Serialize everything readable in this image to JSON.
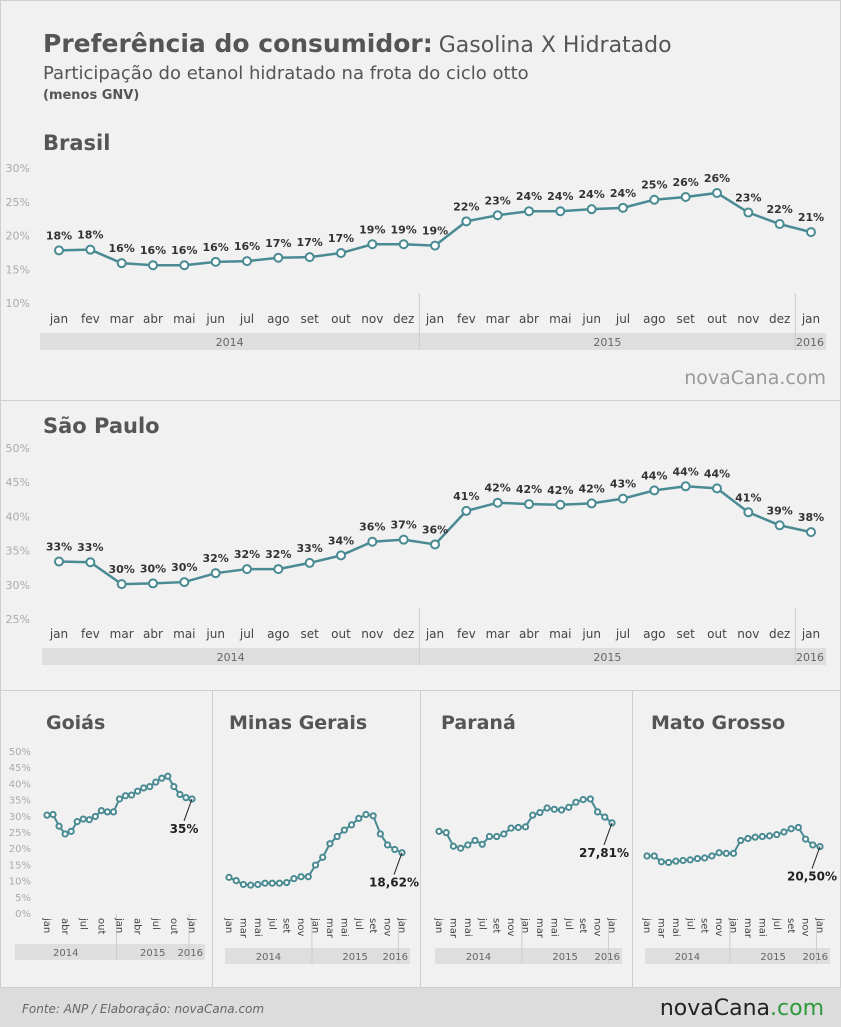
{
  "header": {
    "title": "Preferência do consumidor:",
    "title_2": "Gasolina X Hidratado",
    "subtitle": "Participação do etanol hidratado na frota do ciclo otto",
    "note": "(menos GNV)"
  },
  "watermark": "novaCana.com",
  "chart_data": [
    {
      "type": "line",
      "title": "Brasil",
      "color": "#4a8a93",
      "categories": [
        "jan",
        "fev",
        "mar",
        "abr",
        "mai",
        "jun",
        "jul",
        "ago",
        "set",
        "out",
        "nov",
        "dez",
        "jan",
        "fev",
        "mar",
        "abr",
        "mai",
        "jun",
        "jul",
        "ago",
        "set",
        "out",
        "nov",
        "dez",
        "jan"
      ],
      "years": [
        "2014",
        "2015",
        "2016"
      ],
      "values": [
        17.8,
        17.9,
        15.9,
        15.6,
        15.6,
        16.1,
        16.2,
        16.7,
        16.8,
        17.4,
        18.7,
        18.7,
        18.5,
        22.1,
        23.0,
        23.6,
        23.6,
        23.9,
        24.1,
        25.3,
        25.7,
        26.3,
        23.4,
        21.7,
        20.5
      ],
      "value_labels": [
        "18%",
        "18%",
        "16%",
        "16%",
        "16%",
        "16%",
        "16%",
        "17%",
        "17%",
        "17%",
        "19%",
        "19%",
        "19%",
        "22%",
        "23%",
        "24%",
        "24%",
        "24%",
        "24%",
        "25%",
        "26%",
        "26%",
        "23%",
        "22%",
        "21%"
      ],
      "ylim": [
        10,
        30
      ],
      "yticks": [
        {
          "value": 10,
          "label": "10%"
        },
        {
          "value": 15,
          "label": "15%"
        },
        {
          "value": 20,
          "label": "20%"
        },
        {
          "value": 25,
          "label": "25%"
        },
        {
          "value": 30,
          "label": "30%"
        }
      ]
    },
    {
      "type": "line",
      "title": "São Paulo",
      "color": "#4a8a93",
      "categories": [
        "jan",
        "fev",
        "mar",
        "abr",
        "mai",
        "jun",
        "jul",
        "ago",
        "set",
        "out",
        "nov",
        "dez",
        "jan",
        "fev",
        "mar",
        "abr",
        "mai",
        "jun",
        "jul",
        "ago",
        "set",
        "out",
        "nov",
        "dez",
        "jan"
      ],
      "years": [
        "2014",
        "2015",
        "2016"
      ],
      "values": [
        33.4,
        33.3,
        30.1,
        30.2,
        30.4,
        31.7,
        32.3,
        32.3,
        33.2,
        34.3,
        36.3,
        36.6,
        35.9,
        40.8,
        42.0,
        41.8,
        41.7,
        41.9,
        42.6,
        43.8,
        44.4,
        44.1,
        40.6,
        38.7,
        37.7
      ],
      "value_labels": [
        "33%",
        "33%",
        "30%",
        "30%",
        "30%",
        "32%",
        "32%",
        "32%",
        "33%",
        "34%",
        "36%",
        "37%",
        "36%",
        "41%",
        "42%",
        "42%",
        "42%",
        "42%",
        "43%",
        "44%",
        "44%",
        "44%",
        "41%",
        "39%",
        "38%"
      ],
      "ylim": [
        25,
        50
      ],
      "yticks": [
        {
          "value": 25,
          "label": "25%"
        },
        {
          "value": 30,
          "label": "30%"
        },
        {
          "value": 35,
          "label": "35%"
        },
        {
          "value": 40,
          "label": "40%"
        },
        {
          "value": 45,
          "label": "45%"
        },
        {
          "value": 50,
          "label": "50%"
        }
      ]
    },
    {
      "type": "line",
      "title": "Goiás",
      "color": "#4a8a93",
      "categories": [
        "jan",
        null,
        null,
        "abr",
        null,
        null,
        "jul",
        null,
        null,
        "out",
        null,
        null,
        "jan",
        null,
        null,
        "abr",
        null,
        null,
        "jul",
        null,
        null,
        "out",
        null,
        null,
        "jan"
      ],
      "years": [
        "2014",
        "2015",
        "2016"
      ],
      "values": [
        30.2,
        30.4,
        26.8,
        24.4,
        25.2,
        28.2,
        29.0,
        28.8,
        29.8,
        31.6,
        31.2,
        31.2,
        35.2,
        36.2,
        36.4,
        37.6,
        38.6,
        39.0,
        40.4,
        41.6,
        42.2,
        39.0,
        36.6,
        35.6,
        35.2
      ],
      "value_labels": [
        null,
        null,
        null,
        null,
        null,
        null,
        null,
        null,
        null,
        null,
        null,
        null,
        null,
        null,
        null,
        null,
        null,
        null,
        null,
        null,
        null,
        null,
        null,
        null,
        "35%"
      ],
      "ylim": [
        0,
        50
      ],
      "yticks": [
        {
          "value": 0,
          "label": "0%"
        },
        {
          "value": 5,
          "label": "5%"
        },
        {
          "value": 10,
          "label": "10%"
        },
        {
          "value": 15,
          "label": "15%"
        },
        {
          "value": 20,
          "label": "20%"
        },
        {
          "value": 25,
          "label": "25%"
        },
        {
          "value": 30,
          "label": "30%"
        },
        {
          "value": 35,
          "label": "35%"
        },
        {
          "value": 40,
          "label": "40%"
        },
        {
          "value": 45,
          "label": "45%"
        },
        {
          "value": 50,
          "label": "50%"
        }
      ]
    },
    {
      "type": "line",
      "title": "Minas Gerais",
      "color": "#4a8a93",
      "categories": [
        "jan",
        null,
        "mar",
        null,
        "mai",
        null,
        "jul",
        null,
        "set",
        null,
        "nov",
        null,
        "jan",
        null,
        "mar",
        null,
        "mai",
        null,
        "jul",
        null,
        "set",
        null,
        "nov",
        null,
        "jan"
      ],
      "years": [
        "2014",
        "2015",
        "2016"
      ],
      "values": [
        11.0,
        10.0,
        8.8,
        8.6,
        8.8,
        9.2,
        9.2,
        9.2,
        9.4,
        10.6,
        11.2,
        11.2,
        14.8,
        17.2,
        21.4,
        23.6,
        25.6,
        27.2,
        29.2,
        30.4,
        30.0,
        24.4,
        21.0,
        19.6,
        18.62
      ],
      "value_labels": [
        null,
        null,
        null,
        null,
        null,
        null,
        null,
        null,
        null,
        null,
        null,
        null,
        null,
        null,
        null,
        null,
        null,
        null,
        null,
        null,
        null,
        null,
        null,
        null,
        "18,62%"
      ],
      "ylim": [
        0,
        50
      ]
    },
    {
      "type": "line",
      "title": "Paraná",
      "color": "#4a8a93",
      "categories": [
        "jan",
        null,
        "mar",
        null,
        "mai",
        null,
        "jul",
        null,
        "set",
        null,
        "nov",
        null,
        "jan",
        null,
        "mar",
        null,
        "mai",
        null,
        "jul",
        null,
        "set",
        null,
        "nov",
        null,
        "jan"
      ],
      "years": [
        "2014",
        "2015",
        "2016"
      ],
      "values": [
        25.2,
        24.8,
        20.6,
        20.0,
        21.0,
        22.4,
        21.2,
        23.6,
        23.6,
        24.4,
        26.2,
        26.4,
        26.6,
        30.2,
        31.0,
        32.4,
        32.0,
        31.8,
        32.6,
        34.2,
        35.0,
        35.2,
        31.2,
        29.6,
        27.81
      ],
      "value_labels": [
        null,
        null,
        null,
        null,
        null,
        null,
        null,
        null,
        null,
        null,
        null,
        null,
        null,
        null,
        null,
        null,
        null,
        null,
        null,
        null,
        null,
        null,
        null,
        null,
        "27,81%"
      ],
      "ylim": [
        0,
        50
      ]
    },
    {
      "type": "line",
      "title": "Mato Grosso",
      "color": "#4a8a93",
      "categories": [
        "jan",
        null,
        "mar",
        null,
        "mai",
        null,
        "jul",
        null,
        "set",
        null,
        "nov",
        null,
        "jan",
        null,
        "mar",
        null,
        "mai",
        null,
        "jul",
        null,
        "set",
        null,
        "nov",
        null,
        "jan"
      ],
      "years": [
        "2014",
        "2015",
        "2016"
      ],
      "values": [
        17.6,
        17.6,
        15.8,
        15.6,
        16.0,
        16.2,
        16.4,
        16.8,
        17.0,
        17.6,
        18.6,
        18.4,
        18.4,
        22.4,
        23.0,
        23.4,
        23.6,
        23.8,
        24.2,
        25.0,
        26.0,
        26.4,
        22.8,
        21.0,
        20.5
      ],
      "value_labels": [
        null,
        null,
        null,
        null,
        null,
        null,
        null,
        null,
        null,
        null,
        null,
        null,
        null,
        null,
        null,
        null,
        null,
        null,
        null,
        null,
        null,
        null,
        null,
        null,
        "20,50%"
      ],
      "ylim": [
        0,
        50
      ]
    }
  ],
  "footer": {
    "source": "Fonte: ANP / Elaboração: novaCana.com",
    "logo_1": "novaCana",
    "logo_2": ".com"
  }
}
